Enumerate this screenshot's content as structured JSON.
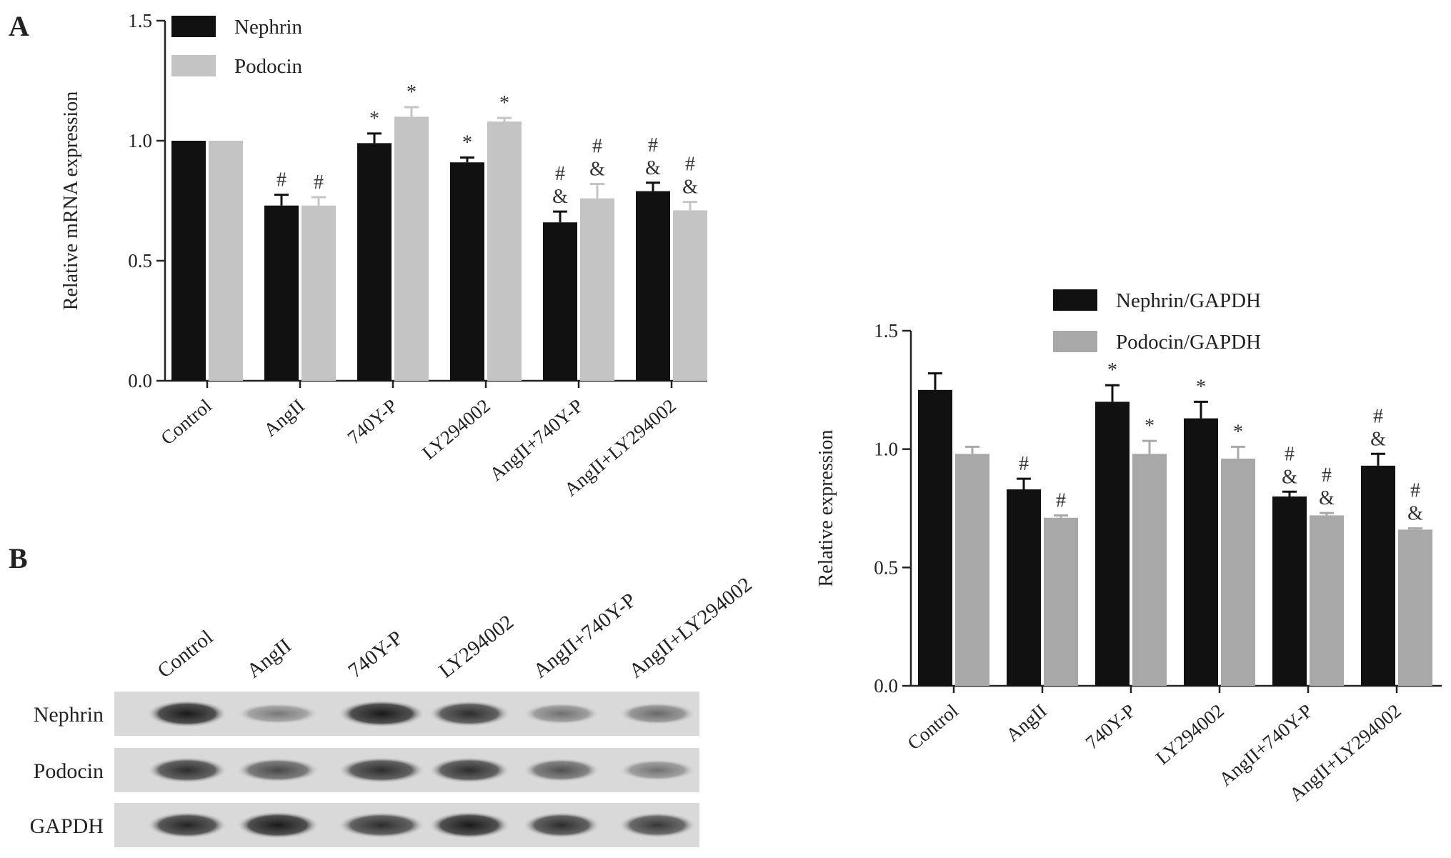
{
  "panels": {
    "a": "A",
    "b": "B"
  },
  "chart_data": [
    {
      "type": "bar",
      "ylabel": "Relative mRNA expression",
      "ylim": [
        0,
        1.5
      ],
      "yticks": [
        "0.0",
        "0.5",
        "1.0",
        "1.5"
      ],
      "categories": [
        "Control",
        "AngII",
        "740Y-P",
        "LY294002",
        "AngII+740Y-P",
        "AngII+LY294002"
      ],
      "legend_position": "top-left",
      "series": [
        {
          "name": "Nephrin",
          "color": "#111111",
          "values": [
            1.0,
            0.73,
            0.99,
            0.91,
            0.66,
            0.79
          ],
          "errors": [
            0.0,
            0.045,
            0.04,
            0.02,
            0.045,
            0.035
          ],
          "marks": [
            "",
            "#",
            "*",
            "*",
            "#\n&",
            "#\n&"
          ]
        },
        {
          "name": "Podocin",
          "color": "#c4c4c4",
          "values": [
            1.0,
            0.73,
            1.1,
            1.08,
            0.76,
            0.71
          ],
          "errors": [
            0.0,
            0.035,
            0.04,
            0.015,
            0.06,
            0.035
          ],
          "marks": [
            "",
            "#",
            "*",
            "*",
            "#\n&",
            "#\n&"
          ]
        }
      ]
    },
    {
      "type": "bar",
      "ylabel": "Relative expression",
      "ylim": [
        0,
        1.5
      ],
      "yticks": [
        "0.0",
        "0.5",
        "1.0",
        "1.5"
      ],
      "categories": [
        "Control",
        "AngII",
        "740Y-P",
        "LY294002",
        "AngII+740Y-P",
        "AngII+LY294002"
      ],
      "legend_position": "top-right",
      "series": [
        {
          "name": "Nephrin/GAPDH",
          "color": "#111111",
          "values": [
            1.25,
            0.83,
            1.2,
            1.13,
            0.8,
            0.93
          ],
          "errors": [
            0.07,
            0.045,
            0.07,
            0.07,
            0.02,
            0.05
          ],
          "marks": [
            "",
            "#",
            "*",
            "*",
            "#\n&",
            "#\n&"
          ]
        },
        {
          "name": "Podocin/GAPDH",
          "color": "#a8a8a8",
          "values": [
            0.98,
            0.71,
            0.98,
            0.96,
            0.72,
            0.66
          ],
          "errors": [
            0.03,
            0.01,
            0.055,
            0.05,
            0.01,
            0.005
          ],
          "marks": [
            "",
            "#",
            "*",
            "*",
            "#\n&",
            "#\n&"
          ]
        }
      ]
    }
  ],
  "blot": {
    "lanes": [
      "Control",
      "AngII",
      "740Y-P",
      "LY294002",
      "AngII+740Y-P",
      "AngII+LY294002"
    ],
    "rows": [
      {
        "label": "Nephrin",
        "intensity": [
          1.0,
          0.45,
          1.0,
          0.9,
          0.5,
          0.55
        ]
      },
      {
        "label": "Podocin",
        "intensity": [
          0.9,
          0.75,
          0.9,
          0.9,
          0.7,
          0.5
        ]
      },
      {
        "label": "GAPDH",
        "intensity": [
          0.95,
          1.0,
          0.9,
          1.0,
          0.9,
          0.85
        ]
      }
    ]
  }
}
